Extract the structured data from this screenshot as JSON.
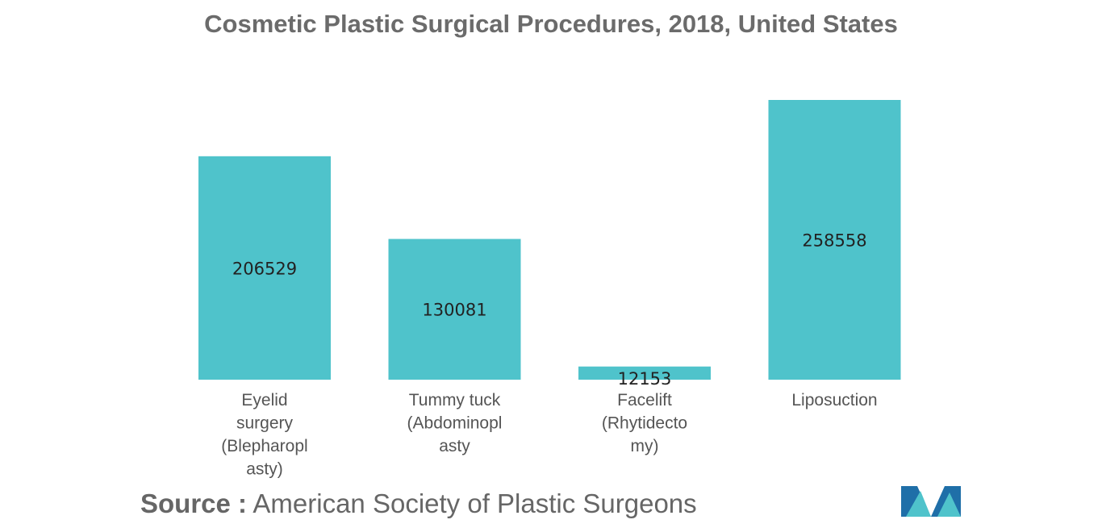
{
  "chart_data": {
    "type": "bar",
    "title": "Cosmetic Plastic Surgical Procedures, 2018, United States",
    "categories": [
      "Eyelid surgery (Blepharoplasty)",
      "Tummy tuck (Abdominoplasty)",
      "Facelift (Rhytidectomy)",
      "Liposuction"
    ],
    "category_label_lines": [
      [
        "Eyelid",
        "surgery",
        "(Blepharopl",
        "asty)"
      ],
      [
        "Tummy tuck",
        "(Abdominopl",
        "asty"
      ],
      [
        "Facelift",
        "(Rhytidecto",
        "my)"
      ],
      [
        "Liposuction"
      ]
    ],
    "values": [
      206529,
      130081,
      12153,
      258558
    ],
    "data_labels": [
      "206529",
      "130081",
      "12153",
      "258558"
    ],
    "ylim": [
      0,
      258558
    ],
    "xlabel": "",
    "ylabel": "",
    "grid": false,
    "legend": "none",
    "bar_color": "#4fc3cb"
  },
  "source": {
    "label": "Source :",
    "text": "American Society of Plastic Surgeons"
  },
  "logo": {
    "icon": "mordor-intelligence-logo-icon",
    "colors": [
      "#1f6fa8",
      "#4fc3cb"
    ]
  }
}
